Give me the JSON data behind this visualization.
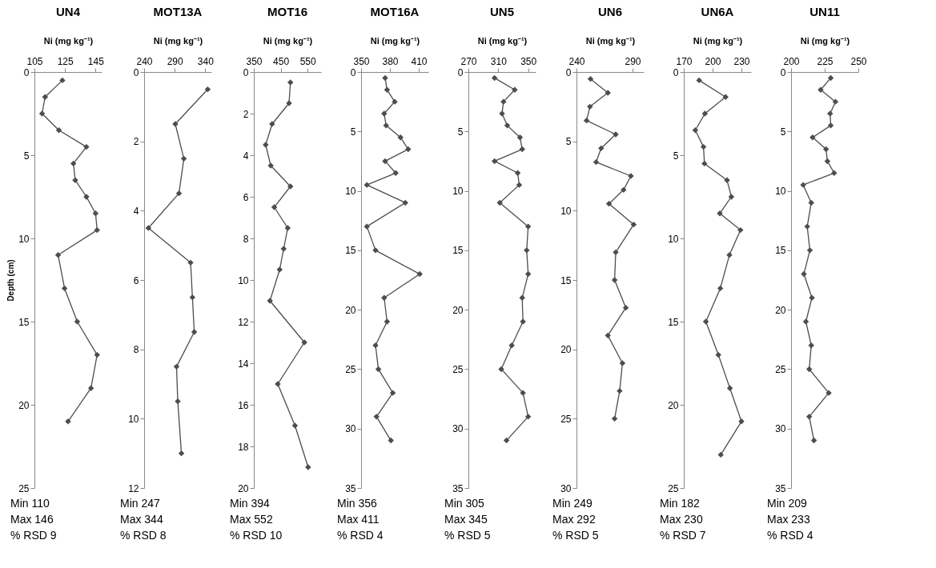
{
  "chart_data": [
    {
      "type": "line",
      "title": "UN4",
      "xlabel": "Ni (mg kg⁻¹)",
      "ylabel": "Depth (cm)",
      "marker": "diamond",
      "xlim": [
        105,
        149
      ],
      "xticks": [
        105,
        125,
        145
      ],
      "ylim": [
        25,
        0
      ],
      "yticks": [
        0,
        5,
        10,
        15,
        20,
        25
      ],
      "series": [
        {
          "color": "#4d4d4d",
          "x": [
            123.3,
            112,
            110,
            121,
            139,
            130.5,
            131.7,
            139,
            145,
            146,
            120.5,
            124.7,
            133,
            146,
            142,
            127
          ],
          "values": [
            0.5,
            1.5,
            2.5,
            3.5,
            4.5,
            5.5,
            6.5,
            7.5,
            8.5,
            9.5,
            11,
            13,
            15,
            17,
            19,
            21
          ]
        }
      ],
      "annotations": [
        "Min 110",
        "Max 146",
        "% RSD 9"
      ]
    },
    {
      "type": "line",
      "title": "MOT13A",
      "xlabel": "Ni (mg kg⁻¹)",
      "marker": "diamond",
      "xlim": [
        240,
        350
      ],
      "xticks": [
        240,
        290,
        340
      ],
      "ylim": [
        12,
        0
      ],
      "yticks": [
        0,
        2,
        4,
        6,
        8,
        10,
        12
      ],
      "series": [
        {
          "color": "#4d4d4d",
          "x": [
            344,
            291,
            305,
            297,
            247,
            316,
            319,
            322,
            293,
            295,
            301
          ],
          "values": [
            0.5,
            1.5,
            2.5,
            3.5,
            4.5,
            5.5,
            6.5,
            7.5,
            8.5,
            9.5,
            11
          ]
        }
      ],
      "annotations": [
        "Min 247",
        "Max 344",
        "% RSD 8"
      ]
    },
    {
      "type": "line",
      "title": "MOT16",
      "xlabel": "Ni (mg kg⁻¹)",
      "marker": "diamond",
      "xlim": [
        350,
        600
      ],
      "xticks": [
        350,
        450,
        550
      ],
      "ylim": [
        20,
        0
      ],
      "yticks": [
        0,
        2,
        4,
        6,
        8,
        10,
        12,
        14,
        16,
        18,
        20
      ],
      "series": [
        {
          "color": "#4d4d4d",
          "x": [
            486,
            481,
            418,
            394,
            413,
            486,
            426,
            476,
            461,
            446,
            410,
            538,
            439,
            503,
            552
          ],
          "values": [
            0.5,
            1.5,
            2.5,
            3.5,
            4.5,
            5.5,
            6.5,
            7.5,
            8.5,
            9.5,
            11,
            13,
            15,
            17,
            19
          ]
        }
      ],
      "annotations": [
        "Min 394",
        "Max 552",
        "% RSD 10"
      ]
    },
    {
      "type": "line",
      "title": "MOT16A",
      "xlabel": "Ni (mg kg⁻¹)",
      "marker": "diamond",
      "xlim": [
        350,
        420
      ],
      "xticks": [
        350,
        380,
        410
      ],
      "ylim": [
        35,
        0
      ],
      "yticks": [
        0,
        5,
        10,
        15,
        20,
        25,
        30,
        35
      ],
      "series": [
        {
          "color": "#4d4d4d",
          "x": [
            375,
            377,
            385,
            374,
            376,
            391,
            399,
            375,
            386,
            356,
            396,
            356,
            365,
            411,
            374,
            377,
            365,
            368,
            383,
            366,
            381
          ],
          "values": [
            0.5,
            1.5,
            2.5,
            3.5,
            4.5,
            5.5,
            6.5,
            7.5,
            8.5,
            9.5,
            11,
            13,
            15,
            17,
            19,
            21,
            23,
            25,
            27,
            29,
            31
          ]
        }
      ],
      "annotations": [
        "Min 356",
        "Max 411",
        "% RSD 4"
      ]
    },
    {
      "type": "line",
      "title": "UN5",
      "xlabel": "Ni (mg kg⁻¹)",
      "marker": "diamond",
      "xlim": [
        270,
        360
      ],
      "xticks": [
        270,
        310,
        350
      ],
      "ylim": [
        35,
        0
      ],
      "yticks": [
        0,
        5,
        10,
        15,
        20,
        25,
        30,
        35
      ],
      "series": [
        {
          "color": "#4d4d4d",
          "x": [
            305,
            332,
            317,
            315,
            322,
            339,
            342,
            305,
            336,
            338,
            312,
            350,
            348,
            350,
            342,
            343,
            328,
            314,
            343,
            350,
            321
          ],
          "values": [
            0.5,
            1.5,
            2.5,
            3.5,
            4.5,
            5.5,
            6.5,
            7.5,
            8.5,
            9.5,
            11,
            13,
            15,
            17,
            19,
            21,
            23,
            25,
            27,
            29,
            31
          ]
        }
      ],
      "annotations": [
        "Min 305",
        "Max 345",
        "% RSD 5"
      ]
    },
    {
      "type": "line",
      "title": "UN6",
      "xlabel": "Ni (mg kg⁻¹)",
      "marker": "diamond",
      "xlim": [
        240,
        300
      ],
      "xticks": [
        240,
        290
      ],
      "ylim": [
        30,
        0
      ],
      "yticks": [
        0,
        5,
        10,
        15,
        20,
        25,
        30
      ],
      "series": [
        {
          "color": "#4d4d4d",
          "x": [
            252.5,
            268,
            252,
            249,
            275,
            262,
            257.5,
            288.5,
            282,
            269,
            291,
            275,
            274,
            284,
            268,
            281,
            278.5,
            274
          ],
          "values": [
            0.5,
            1.5,
            2.5,
            3.5,
            4.5,
            5.5,
            6.5,
            7.5,
            8.5,
            9.5,
            11,
            13,
            15,
            17,
            19,
            21,
            23,
            25
          ]
        }
      ],
      "annotations": [
        "Min 249",
        "Max 292",
        "% RSD 5"
      ]
    },
    {
      "type": "line",
      "title": "UN6A",
      "xlabel": "Ni (mg kg⁻¹)",
      "marker": "diamond",
      "xlim": [
        170,
        240
      ],
      "xticks": [
        170,
        200,
        230
      ],
      "ylim": [
        25,
        0
      ],
      "yticks": [
        0,
        5,
        10,
        15,
        20,
        25
      ],
      "series": [
        {
          "color": "#4d4d4d",
          "x": [
            186,
            213.5,
            192,
            182,
            190.5,
            191.5,
            215,
            219.5,
            207.5,
            229,
            217.5,
            208,
            193,
            206,
            218,
            230,
            208.5
          ],
          "values": [
            0.5,
            1.5,
            2.5,
            3.5,
            4.5,
            5.5,
            6.5,
            7.5,
            8.5,
            9.5,
            11,
            13,
            15,
            17,
            19,
            21,
            23
          ]
        }
      ],
      "annotations": [
        "Min 182",
        "Max 230",
        "% RSD 7"
      ]
    },
    {
      "type": "line",
      "title": "UN11",
      "xlabel": "Ni (mg kg⁻¹)",
      "marker": "diamond",
      "xlim": [
        200,
        250
      ],
      "xticks": [
        200,
        225,
        250
      ],
      "ylim": [
        35,
        0
      ],
      "yticks": [
        0,
        5,
        10,
        15,
        20,
        25,
        30,
        35
      ],
      "series": [
        {
          "color": "#4d4d4d",
          "x": [
            229.5,
            222,
            233,
            229,
            229.5,
            216,
            226,
            227,
            232,
            209,
            215,
            212,
            214,
            209.5,
            215.5,
            211,
            215,
            213.5,
            228,
            213.5,
            217
          ],
          "values": [
            0.5,
            1.5,
            2.5,
            3.5,
            4.5,
            5.5,
            6.5,
            7.5,
            8.5,
            9.5,
            11,
            13,
            15,
            17,
            19,
            21,
            23,
            25,
            27,
            29,
            31
          ]
        }
      ],
      "annotations": [
        "Min 209",
        "Max 233",
        "% RSD 4"
      ]
    }
  ]
}
